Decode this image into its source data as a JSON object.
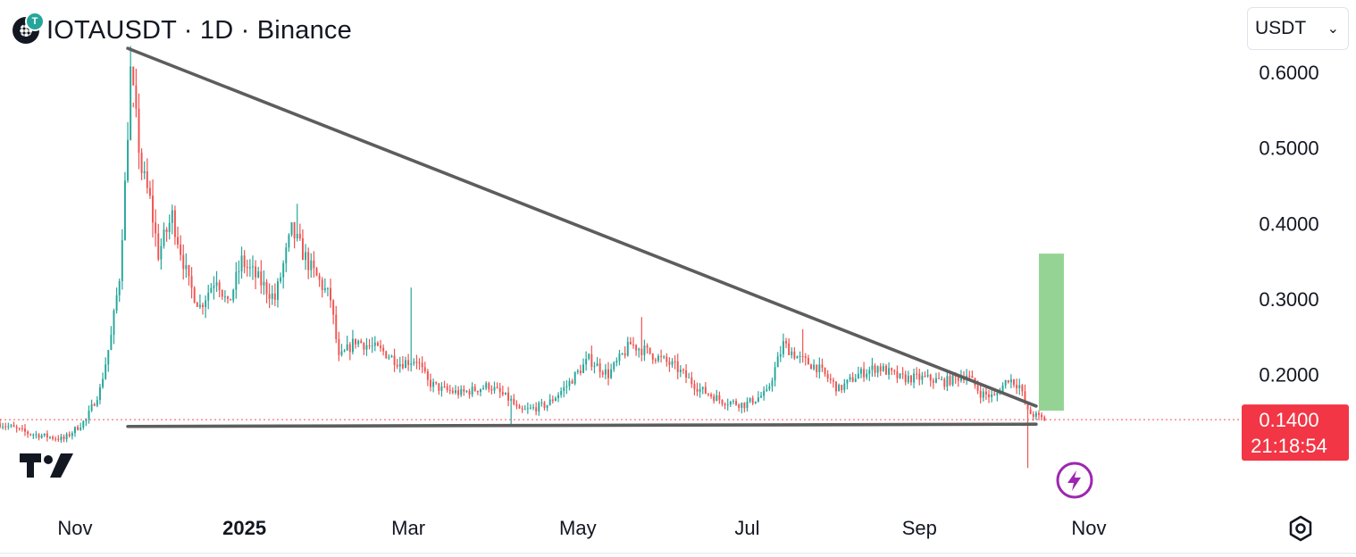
{
  "header": {
    "symbol_title": "IOTAUSDT · 1D · Binance",
    "coin_badge": "T"
  },
  "currency_select": {
    "value": "USDT"
  },
  "price_label": {
    "price": "0.1400",
    "countdown": "21:18:54",
    "color": "#f23645"
  },
  "icons": {
    "logo": "tradingview-logo-icon",
    "settings": "gear-icon",
    "alert": "lightning-icon",
    "coin": "iota-coin-icon"
  },
  "chart_data": {
    "type": "candlestick",
    "title": "IOTAUSDT · 1D · Binance",
    "y_ticks": [
      0.2,
      0.3,
      0.4,
      0.5,
      0.6
    ],
    "y_tick_labels": [
      "0.2000",
      "0.3000",
      "0.4000",
      "0.5000",
      "0.6000"
    ],
    "x_tick_labels": [
      "Nov",
      "2025",
      "Mar",
      "May",
      "Jul",
      "Sep",
      "Nov"
    ],
    "x_ticks": [
      "2024-11-01",
      "2025-01-01",
      "2025-03-01",
      "2025-05-01",
      "2025-07-01",
      "2025-09-01",
      "2025-11-01"
    ],
    "x_range": [
      "2024-10-05",
      "2025-12-26"
    ],
    "y_range": [
      0.016,
      0.696
    ],
    "current_price": 0.14,
    "colors": {
      "up": "#26a69a",
      "down": "#ef5350",
      "trendline": "#5d5d5d",
      "target_box": "#8fd18f"
    },
    "trendlines": [
      {
        "name": "upper",
        "points": [
          [
            "2024-11-20",
            0.632
          ],
          [
            "2025-10-13",
            0.158
          ]
        ]
      },
      {
        "name": "support",
        "points": [
          [
            "2024-11-20",
            0.131
          ],
          [
            "2025-10-13",
            0.134
          ]
        ]
      }
    ],
    "target_box": {
      "x": [
        "2025-10-14",
        "2025-10-23"
      ],
      "y": [
        0.152,
        0.36
      ]
    },
    "anchors": [
      [
        "2024-10-05",
        0.135
      ],
      [
        "2024-10-15",
        0.122
      ],
      [
        "2024-10-28",
        0.114
      ],
      [
        "2024-11-05",
        0.14
      ],
      [
        "2024-11-10",
        0.18
      ],
      [
        "2024-11-14",
        0.25
      ],
      [
        "2024-11-17",
        0.33
      ],
      [
        "2024-11-19",
        0.45
      ],
      [
        "2024-11-21",
        0.6
      ],
      [
        "2024-11-25",
        0.47
      ],
      [
        "2024-11-28",
        0.43
      ],
      [
        "2024-12-01",
        0.36
      ],
      [
        "2024-12-06",
        0.41
      ],
      [
        "2024-12-12",
        0.32
      ],
      [
        "2024-12-16",
        0.29
      ],
      [
        "2024-12-22",
        0.33
      ],
      [
        "2024-12-26",
        0.29
      ],
      [
        "2024-12-31",
        0.35
      ],
      [
        "2025-01-05",
        0.33
      ],
      [
        "2025-01-12",
        0.3
      ],
      [
        "2025-01-18",
        0.39
      ],
      [
        "2025-01-25",
        0.34
      ],
      [
        "2025-02-01",
        0.3
      ],
      [
        "2025-02-04",
        0.22
      ],
      [
        "2025-02-10",
        0.245
      ],
      [
        "2025-02-20",
        0.23
      ],
      [
        "2025-02-26",
        0.215
      ],
      [
        "2025-03-04",
        0.22
      ],
      [
        "2025-03-08",
        0.19
      ],
      [
        "2025-03-13",
        0.18
      ],
      [
        "2025-03-20",
        0.175
      ],
      [
        "2025-03-30",
        0.185
      ],
      [
        "2025-04-07",
        0.165
      ],
      [
        "2025-04-10",
        0.15
      ],
      [
        "2025-04-20",
        0.16
      ],
      [
        "2025-04-27",
        0.185
      ],
      [
        "2025-05-05",
        0.22
      ],
      [
        "2025-05-12",
        0.2
      ],
      [
        "2025-05-20",
        0.24
      ],
      [
        "2025-05-26",
        0.23
      ],
      [
        "2025-06-05",
        0.21
      ],
      [
        "2025-06-14",
        0.18
      ],
      [
        "2025-06-22",
        0.165
      ],
      [
        "2025-06-30",
        0.16
      ],
      [
        "2025-07-08",
        0.175
      ],
      [
        "2025-07-14",
        0.24
      ],
      [
        "2025-07-20",
        0.22
      ],
      [
        "2025-07-26",
        0.21
      ],
      [
        "2025-08-03",
        0.18
      ],
      [
        "2025-08-10",
        0.2
      ],
      [
        "2025-08-17",
        0.21
      ],
      [
        "2025-08-25",
        0.195
      ],
      [
        "2025-09-03",
        0.195
      ],
      [
        "2025-09-10",
        0.19
      ],
      [
        "2025-09-18",
        0.2
      ],
      [
        "2025-09-23",
        0.175
      ],
      [
        "2025-09-28",
        0.17
      ],
      [
        "2025-10-03",
        0.195
      ],
      [
        "2025-10-07",
        0.185
      ],
      [
        "2025-10-10",
        0.15
      ],
      [
        "2025-10-13",
        0.145
      ],
      [
        "2025-10-16",
        0.14
      ]
    ],
    "spikes": [
      [
        "2024-11-22",
        0.56
      ],
      [
        "2025-01-20",
        0.426
      ],
      [
        "2025-03-02",
        0.315
      ],
      [
        "2025-05-24",
        0.276
      ],
      [
        "2025-07-21",
        0.26
      ]
    ],
    "low_wicks": [
      [
        "2025-10-10",
        0.076
      ],
      [
        "2025-04-07",
        0.133
      ]
    ]
  }
}
